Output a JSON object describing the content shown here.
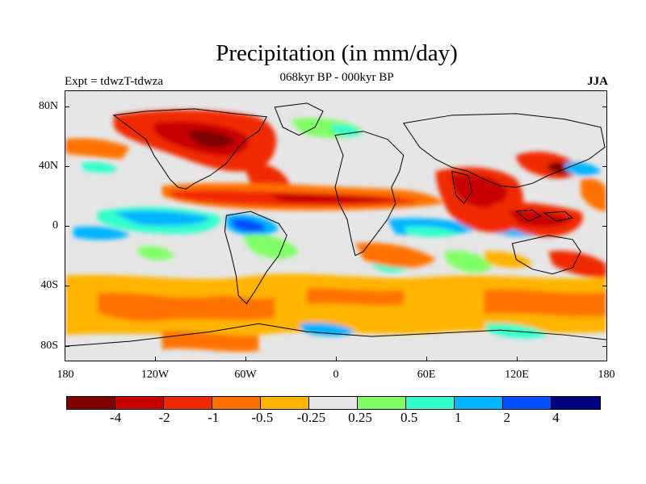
{
  "title": "Precipitation (in mm/day)",
  "left_label": "Expt = tdwzT-tdwza",
  "center_label": "068kyr BP - 000kyr BP",
  "right_label": "JJA",
  "lat_labels": [
    "80N",
    "40N",
    "0",
    "40S",
    "80S"
  ],
  "lon_labels": [
    "180",
    "120W",
    "60W",
    "0",
    "60E",
    "120E",
    "180"
  ],
  "colorbar": {
    "colors": [
      "#7f0000",
      "#c80000",
      "#f02a00",
      "#ff7200",
      "#ffb400",
      "#e6e6e6",
      "#80ff66",
      "#33ffcc",
      "#00b4ff",
      "#0050ff",
      "#000080"
    ],
    "labels": [
      "-4",
      "-2",
      "-1",
      "-0.5",
      "-0.25",
      "0.25",
      "0.5",
      "1",
      "2",
      "4"
    ]
  }
}
